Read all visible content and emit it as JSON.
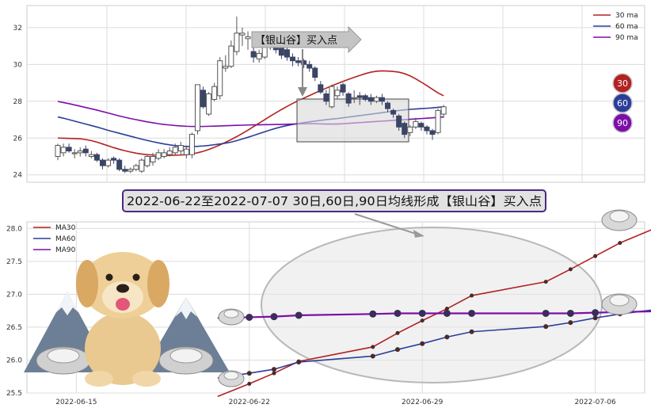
{
  "colors": {
    "ma30": "#b22222",
    "ma60": "#2b3d99",
    "ma90": "#7b0fa8",
    "candle_down": "#3b4566",
    "grid": "#dcdcdc",
    "banner_border": "#4b2a7a",
    "banner_fill": "#e2e2e2"
  },
  "callout_label": "【银山谷】买入点",
  "banner_text": "2022-06-22至2022-07-07 30日,60日,90日均线形成【银山谷】买入点",
  "badges": [
    "30",
    "60",
    "90"
  ],
  "chart_data": [
    {
      "type": "candlestick",
      "ylim": [
        23.6,
        33.2
      ],
      "yticks": [
        "24",
        "26",
        "28",
        "30",
        "32"
      ],
      "legend": {
        "placement": "top-right",
        "entries": [
          "30 ma",
          "60 ma",
          "90 ma"
        ]
      },
      "grid": true,
      "candles": [
        [
          25.0,
          25.6,
          24.8,
          25.7
        ],
        [
          25.2,
          25.5,
          25.0,
          25.7
        ],
        [
          25.5,
          25.3,
          25.2,
          25.7
        ],
        [
          25.2,
          25.2,
          24.9,
          25.4
        ],
        [
          25.2,
          25.3,
          25.0,
          25.5
        ],
        [
          25.4,
          25.2,
          25.0,
          25.6
        ],
        [
          25.0,
          25.1,
          24.9,
          25.3
        ],
        [
          25.1,
          24.8,
          24.7,
          25.2
        ],
        [
          24.8,
          24.5,
          24.3,
          24.9
        ],
        [
          24.5,
          24.8,
          24.4,
          24.9
        ],
        [
          24.9,
          24.8,
          24.6,
          25.0
        ],
        [
          24.8,
          24.3,
          24.2,
          24.9
        ],
        [
          24.3,
          24.2,
          24.1,
          24.5
        ],
        [
          24.2,
          24.3,
          24.1,
          24.4
        ],
        [
          24.3,
          24.5,
          24.2,
          24.6
        ],
        [
          24.2,
          24.8,
          24.1,
          24.9
        ],
        [
          24.5,
          25.0,
          24.4,
          25.1
        ],
        [
          24.7,
          25.0,
          24.5,
          25.2
        ],
        [
          24.9,
          25.2,
          24.8,
          25.4
        ],
        [
          25.0,
          25.2,
          24.9,
          25.4
        ],
        [
          25.1,
          25.3,
          25.0,
          25.5
        ],
        [
          25.2,
          25.5,
          25.1,
          25.7
        ],
        [
          25.3,
          25.6,
          25.1,
          25.8
        ],
        [
          25.1,
          25.4,
          24.9,
          25.6
        ],
        [
          25.1,
          26.2,
          24.9,
          26.3
        ],
        [
          26.4,
          28.9,
          26.2,
          28.9
        ],
        [
          28.6,
          27.7,
          27.6,
          28.8
        ],
        [
          27.3,
          28.4,
          27.2,
          28.5
        ],
        [
          28.1,
          28.8,
          28.0,
          29.0
        ],
        [
          28.3,
          30.2,
          28.1,
          30.4
        ],
        [
          29.8,
          29.9,
          29.6,
          30.5
        ],
        [
          29.9,
          31.0,
          29.8,
          31.3
        ],
        [
          30.7,
          31.7,
          30.5,
          32.6
        ],
        [
          31.6,
          31.7,
          31.0,
          32.0
        ],
        [
          31.4,
          31.5,
          30.8,
          31.8
        ],
        [
          30.7,
          30.4,
          30.1,
          31.0
        ],
        [
          30.3,
          30.6,
          30.1,
          30.8
        ],
        [
          30.4,
          31.0,
          30.3,
          31.2
        ],
        [
          31.2,
          31.1,
          30.8,
          31.4
        ],
        [
          31.0,
          30.8,
          30.6,
          31.2
        ],
        [
          30.9,
          30.5,
          30.3,
          31.1
        ],
        [
          30.8,
          30.4,
          30.2,
          31.0
        ],
        [
          30.4,
          30.2,
          29.9,
          30.6
        ],
        [
          30.2,
          30.1,
          29.9,
          30.4
        ],
        [
          30.2,
          30.0,
          29.8,
          30.3
        ],
        [
          30.0,
          29.8,
          29.6,
          30.2
        ],
        [
          29.8,
          29.3,
          29.1,
          29.9
        ],
        [
          28.9,
          28.5,
          28.4,
          29.1
        ],
        [
          28.4,
          28.0,
          27.8,
          28.6
        ],
        [
          27.7,
          28.8,
          27.6,
          28.9
        ],
        [
          28.3,
          28.6,
          28.1,
          28.8
        ],
        [
          28.9,
          28.5,
          28.3,
          29.0
        ],
        [
          28.4,
          27.9,
          27.7,
          28.5
        ],
        [
          28.2,
          28.2,
          27.9,
          28.6
        ],
        [
          28.3,
          28.2,
          27.8,
          28.5
        ],
        [
          28.3,
          28.1,
          28.0,
          28.4
        ],
        [
          28.2,
          28.0,
          27.8,
          28.4
        ],
        [
          28.0,
          28.2,
          27.9,
          28.3
        ],
        [
          28.2,
          28.0,
          27.8,
          28.4
        ],
        [
          27.9,
          27.6,
          27.4,
          28.0
        ],
        [
          27.5,
          27.3,
          27.1,
          27.6
        ],
        [
          27.2,
          26.6,
          26.4,
          27.3
        ],
        [
          26.8,
          26.2,
          26.0,
          26.9
        ],
        [
          26.3,
          26.6,
          26.1,
          26.7
        ],
        [
          26.6,
          26.9,
          26.5,
          27.1
        ],
        [
          26.8,
          26.6,
          26.4,
          26.9
        ],
        [
          26.6,
          26.4,
          26.2,
          26.7
        ],
        [
          26.4,
          26.2,
          25.9,
          26.5
        ],
        [
          26.3,
          27.5,
          26.2,
          27.6
        ],
        [
          27.3,
          27.7,
          27.1,
          27.8
        ]
      ],
      "series": [
        {
          "name": "30 ma",
          "color": "#b22222",
          "values": [
            26.0,
            25.99,
            25.98,
            25.97,
            25.96,
            25.92,
            25.86,
            25.78,
            25.68,
            25.58,
            25.48,
            25.39,
            25.31,
            25.24,
            25.18,
            25.13,
            25.1,
            25.08,
            25.07,
            25.06,
            25.06,
            25.07,
            25.08,
            25.1,
            25.14,
            25.2,
            25.28,
            25.38,
            25.5,
            25.63,
            25.77,
            25.92,
            26.08,
            26.25,
            26.43,
            26.62,
            26.81,
            27.0,
            27.19,
            27.37,
            27.55,
            27.72,
            27.88,
            28.03,
            28.17,
            28.31,
            28.45,
            28.58,
            28.71,
            28.84,
            28.96,
            29.08,
            29.19,
            29.3,
            29.4,
            29.5,
            29.58,
            29.63,
            29.65,
            29.64,
            29.62,
            29.58,
            29.5,
            29.38,
            29.22,
            29.04,
            28.85,
            28.65,
            28.45,
            28.3
          ]
        },
        {
          "name": "60 ma",
          "color": "#2b3d99",
          "values": [
            27.15,
            27.08,
            27.0,
            26.92,
            26.84,
            26.76,
            26.68,
            26.6,
            26.51,
            26.42,
            26.34,
            26.26,
            26.18,
            26.1,
            26.02,
            25.94,
            25.87,
            25.8,
            25.74,
            25.68,
            25.63,
            25.59,
            25.56,
            25.54,
            25.54,
            25.55,
            25.57,
            25.6,
            25.64,
            25.68,
            25.72,
            25.78,
            25.86,
            25.95,
            26.04,
            26.14,
            26.24,
            26.34,
            26.44,
            26.53,
            26.61,
            26.68,
            26.74,
            26.79,
            26.84,
            26.88,
            26.92,
            26.96,
            27.0,
            27.03,
            27.06,
            27.1,
            27.14,
            27.18,
            27.22,
            27.26,
            27.3,
            27.34,
            27.38,
            27.42,
            27.46,
            27.5,
            27.53,
            27.56,
            27.58,
            27.6,
            27.62,
            27.64,
            27.67,
            27.7
          ]
        },
        {
          "name": "90 ma",
          "color": "#7b0fa8",
          "values": [
            27.99,
            27.93,
            27.87,
            27.8,
            27.73,
            27.66,
            27.59,
            27.52,
            27.44,
            27.36,
            27.28,
            27.2,
            27.13,
            27.06,
            27.0,
            26.94,
            26.88,
            26.83,
            26.78,
            26.74,
            26.71,
            26.68,
            26.66,
            26.64,
            26.63,
            26.63,
            26.63,
            26.64,
            26.65,
            26.66,
            26.67,
            26.68,
            26.69,
            26.7,
            26.71,
            26.72,
            26.72,
            26.73,
            26.73,
            26.74,
            26.74,
            26.75,
            26.76,
            26.77,
            26.78,
            26.78,
            26.78,
            26.77,
            26.76,
            26.76,
            26.76,
            26.78,
            26.8,
            26.82,
            26.84,
            26.86,
            26.88,
            26.9,
            26.92,
            26.94,
            26.96,
            26.98,
            27.0,
            27.02,
            27.04,
            27.06,
            27.08,
            27.1,
            27.12,
            27.15
          ]
        }
      ]
    },
    {
      "type": "line",
      "ylim": [
        25.5,
        28.1
      ],
      "yticks": [
        "25.5",
        "26.0",
        "26.5",
        "27.0",
        "27.5",
        "28.0"
      ],
      "xticks": [
        "2022-06-15",
        "2022-06-22",
        "2022-06-29",
        "2022-07-06"
      ],
      "xrange_days": [
        -9,
        16
      ],
      "legend": {
        "placement": "top-left",
        "entries": [
          "MA30",
          "MA60",
          "MA90"
        ]
      },
      "grid": true,
      "x": [
        "2022-06-22",
        "2022-06-23",
        "2022-06-24",
        "2022-06-27",
        "2022-06-28",
        "2022-06-29",
        "2022-06-30",
        "2022-07-01",
        "2022-07-04",
        "2022-07-05",
        "2022-07-06",
        "2022-07-07"
      ],
      "series": [
        {
          "name": "MA30",
          "color": "#b22222",
          "values": [
            25.64,
            25.8,
            25.98,
            26.2,
            26.41,
            26.6,
            26.78,
            26.98,
            27.19,
            27.38,
            27.58,
            27.78
          ]
        },
        {
          "name": "MA60",
          "color": "#2b3d99",
          "values": [
            25.8,
            25.86,
            25.97,
            26.06,
            26.16,
            26.25,
            26.35,
            26.43,
            26.51,
            26.57,
            26.64,
            26.7
          ]
        },
        {
          "name": "MA90",
          "color": "#7b0fa8",
          "values": [
            26.65,
            26.66,
            26.68,
            26.7,
            26.71,
            26.71,
            26.71,
            26.71,
            26.71,
            26.71,
            26.72,
            26.73
          ]
        }
      ]
    }
  ]
}
